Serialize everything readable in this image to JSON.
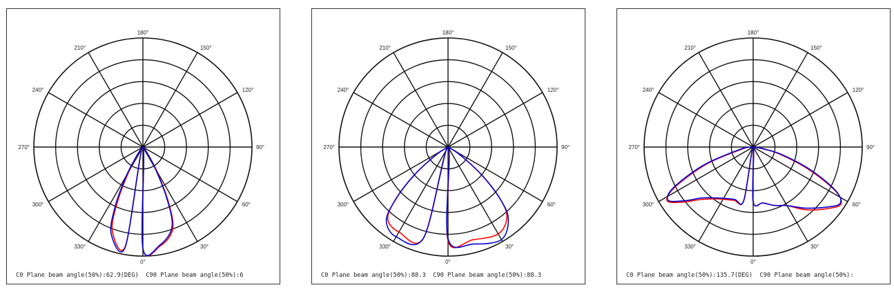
{
  "chart_data": [
    {
      "type": "polar",
      "angle_labels": [
        "0°",
        "30°",
        "60°",
        "90°",
        "120°",
        "150°",
        "180°",
        "210°",
        "240°",
        "270°",
        "300°",
        "330°"
      ],
      "rings": 5,
      "caption": "C0 Plane beam angle(50%):62.9(DEG)  C90 Plane beam angle(50%):6",
      "series": [
        {
          "color": "#ff0000",
          "points": [
            [
              0,
              0.93
            ],
            [
              10,
              0.92
            ],
            [
              20,
              0.8
            ],
            [
              25,
              0.55
            ],
            [
              30,
              0.25
            ],
            [
              35,
              0.08
            ],
            [
              40,
              0.02
            ],
            [
              320,
              0.02
            ],
            [
              325,
              0.08
            ],
            [
              330,
              0.25
            ],
            [
              335,
              0.55
            ],
            [
              340,
              0.82
            ],
            [
              350,
              0.92
            ]
          ]
        },
        {
          "color": "#0000cc",
          "points": [
            [
              0,
              0.93
            ],
            [
              10,
              0.91
            ],
            [
              20,
              0.78
            ],
            [
              25,
              0.52
            ],
            [
              30,
              0.22
            ],
            [
              35,
              0.06
            ],
            [
              40,
              0.02
            ],
            [
              320,
              0.02
            ],
            [
              325,
              0.1
            ],
            [
              330,
              0.3
            ],
            [
              335,
              0.6
            ],
            [
              340,
              0.85
            ],
            [
              350,
              0.93
            ]
          ]
        }
      ]
    },
    {
      "type": "polar",
      "angle_labels": [
        "0°",
        "30°",
        "60°",
        "90°",
        "120°",
        "150°",
        "180°",
        "210°",
        "240°",
        "270°",
        "300°",
        "330°"
      ],
      "rings": 5,
      "caption": "C0 Plane beam angle(50%):88.3  C90 Plane beam angle(50%):88.3",
      "series": [
        {
          "color": "#ff0000",
          "points": [
            [
              0,
              0.86
            ],
            [
              15,
              0.88
            ],
            [
              30,
              0.92
            ],
            [
              40,
              0.84
            ],
            [
              45,
              0.68
            ],
            [
              50,
              0.42
            ],
            [
              55,
              0.18
            ],
            [
              60,
              0.03
            ],
            [
              300,
              0.03
            ],
            [
              305,
              0.18
            ],
            [
              310,
              0.42
            ],
            [
              315,
              0.68
            ],
            [
              320,
              0.86
            ],
            [
              330,
              0.9
            ],
            [
              345,
              0.86
            ]
          ]
        },
        {
          "color": "#0000cc",
          "points": [
            [
              0,
              0.84
            ],
            [
              15,
              0.92
            ],
            [
              30,
              0.98
            ],
            [
              40,
              0.86
            ],
            [
              45,
              0.68
            ],
            [
              50,
              0.42
            ],
            [
              55,
              0.18
            ],
            [
              60,
              0.03
            ],
            [
              300,
              0.03
            ],
            [
              305,
              0.18
            ],
            [
              310,
              0.42
            ],
            [
              315,
              0.68
            ],
            [
              320,
              0.88
            ],
            [
              330,
              0.95
            ],
            [
              345,
              0.86
            ]
          ]
        }
      ]
    },
    {
      "type": "polar",
      "angle_labels": [
        "0°",
        "30°",
        "60°",
        "90°",
        "120°",
        "150°",
        "180°",
        "210°",
        "240°",
        "270°",
        "300°",
        "330°"
      ],
      "rings": 5,
      "caption": "C0 Plane beam angle(50%):135.7(DEG)  C90 Plane beam angle(50%):",
      "series": [
        {
          "color": "#ff0000",
          "points": [
            [
              0,
              0.5
            ],
            [
              10,
              0.52
            ],
            [
              20,
              0.57
            ],
            [
              30,
              0.62
            ],
            [
              40,
              0.75
            ],
            [
              50,
              0.88
            ],
            [
              57,
              0.96
            ],
            [
              62,
              0.85
            ],
            [
              68,
              0.55
            ],
            [
              75,
              0.25
            ],
            [
              80,
              0.08
            ],
            [
              85,
              0.02
            ],
            [
              275,
              0.02
            ],
            [
              280,
              0.1
            ],
            [
              290,
              0.45
            ],
            [
              297,
              0.8
            ],
            [
              302,
              0.93
            ],
            [
              308,
              0.82
            ],
            [
              315,
              0.68
            ],
            [
              325,
              0.58
            ],
            [
              340,
              0.52
            ],
            [
              350,
              0.5
            ]
          ]
        },
        {
          "color": "#0000cc",
          "points": [
            [
              0,
              0.5
            ],
            [
              10,
              0.52
            ],
            [
              20,
              0.57
            ],
            [
              30,
              0.62
            ],
            [
              40,
              0.73
            ],
            [
              50,
              0.86
            ],
            [
              57,
              0.95
            ],
            [
              62,
              0.86
            ],
            [
              68,
              0.58
            ],
            [
              75,
              0.28
            ],
            [
              80,
              0.1
            ],
            [
              85,
              0.02
            ],
            [
              275,
              0.02
            ],
            [
              280,
              0.12
            ],
            [
              290,
              0.48
            ],
            [
              297,
              0.82
            ],
            [
              302,
              0.92
            ],
            [
              308,
              0.8
            ],
            [
              315,
              0.66
            ],
            [
              325,
              0.57
            ],
            [
              340,
              0.51
            ],
            [
              350,
              0.5
            ]
          ]
        }
      ]
    }
  ]
}
